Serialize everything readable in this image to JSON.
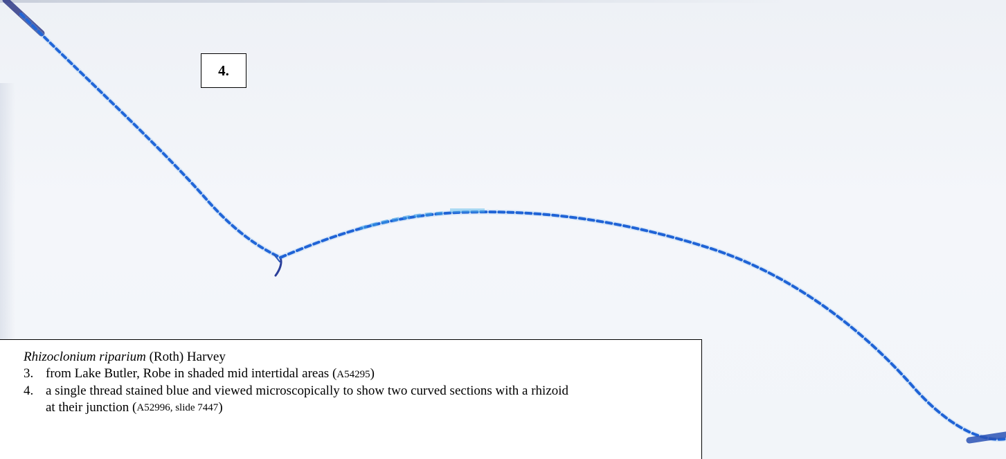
{
  "figure": {
    "panel_label": "4.",
    "colors": {
      "background": "#f1f4f9",
      "filament_blue": "#1f63d6",
      "filament_light": "#3aa0e8",
      "filament_dark": "#2f2f7a"
    }
  },
  "caption": {
    "species": "Rhizoclonium riparium",
    "authority": "(Roth) Harvey",
    "items": [
      {
        "number": "3.",
        "text": "from Lake Butler, Robe in shaded mid intertidal areas (",
        "ref": "A54295",
        "close": ")"
      },
      {
        "number": "4.",
        "text": "a single thread stained blue and viewed microscopically to show two curved sections with a rhizoid",
        "continuation": "at their junction (",
        "ref": "A52996, slide 7447",
        "close": ")"
      }
    ]
  }
}
